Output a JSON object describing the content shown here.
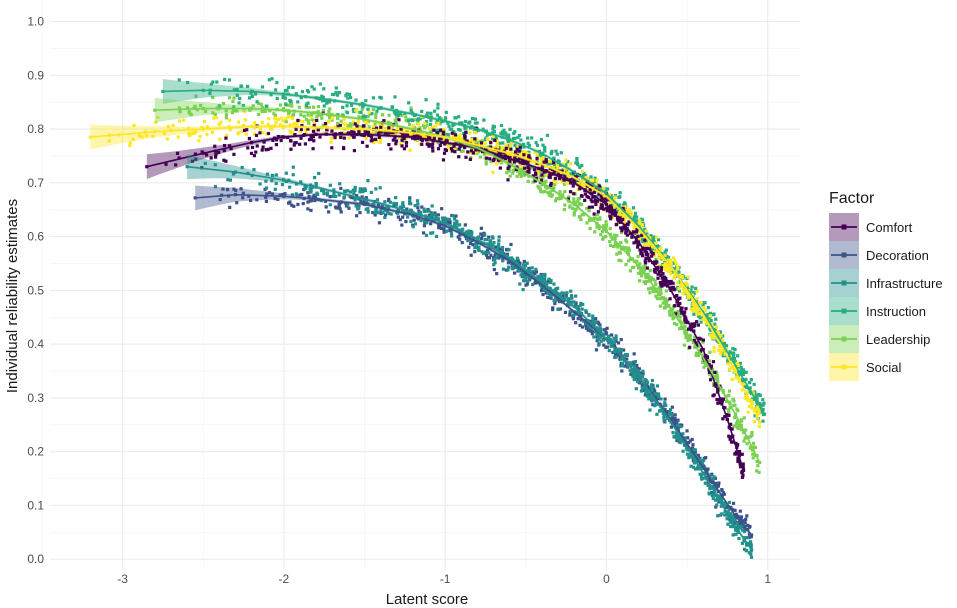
{
  "chart_data": {
    "type": "scatter",
    "xlabel": "Latent score",
    "ylabel": "Individual reliability estimates",
    "xlim": [
      -3.45,
      1.2
    ],
    "ylim": [
      -0.02,
      1.04
    ],
    "x_ticks": [
      -3,
      -2,
      -1,
      0,
      1
    ],
    "x_tick_labels": [
      "-3",
      "-2",
      "-1",
      "0",
      "1"
    ],
    "y_ticks": [
      0.0,
      0.1,
      0.2,
      0.3,
      0.4,
      0.5,
      0.6,
      0.7,
      0.8,
      0.9,
      1.0
    ],
    "y_tick_labels": [
      "0.0",
      "0.1",
      "0.2",
      "0.3",
      "0.4",
      "0.5",
      "0.6",
      "0.7",
      "0.8",
      "0.9",
      "1.0"
    ],
    "grid": true,
    "legend": {
      "title": "Factor",
      "position": "right"
    },
    "series": [
      {
        "name": "Comfort",
        "color": "#440154",
        "points": [
          [
            -2.85,
            0.73
          ],
          [
            -2.5,
            0.755
          ],
          [
            -2.2,
            0.775
          ],
          [
            -2.0,
            0.785
          ],
          [
            -1.8,
            0.79
          ],
          [
            -1.5,
            0.79
          ],
          [
            -1.2,
            0.785
          ],
          [
            -1.0,
            0.775
          ],
          [
            -0.8,
            0.765
          ],
          [
            -0.6,
            0.745
          ],
          [
            -0.4,
            0.725
          ],
          [
            -0.2,
            0.7
          ],
          [
            0.0,
            0.66
          ],
          [
            0.2,
            0.59
          ],
          [
            0.4,
            0.5
          ],
          [
            0.6,
            0.39
          ],
          [
            0.75,
            0.26
          ],
          [
            0.85,
            0.165
          ]
        ]
      },
      {
        "name": "Decoration",
        "color": "#3b528b",
        "points": [
          [
            -2.55,
            0.672
          ],
          [
            -2.3,
            0.678
          ],
          [
            -2.0,
            0.675
          ],
          [
            -1.8,
            0.67
          ],
          [
            -1.5,
            0.66
          ],
          [
            -1.2,
            0.64
          ],
          [
            -1.0,
            0.62
          ],
          [
            -0.8,
            0.59
          ],
          [
            -0.6,
            0.555
          ],
          [
            -0.4,
            0.51
          ],
          [
            -0.2,
            0.46
          ],
          [
            0.0,
            0.41
          ],
          [
            0.2,
            0.34
          ],
          [
            0.4,
            0.26
          ],
          [
            0.6,
            0.17
          ],
          [
            0.8,
            0.08
          ],
          [
            0.9,
            0.045
          ]
        ]
      },
      {
        "name": "Infrastructure",
        "color": "#21918c",
        "points": [
          [
            -2.6,
            0.73
          ],
          [
            -2.3,
            0.72
          ],
          [
            -2.0,
            0.705
          ],
          [
            -1.8,
            0.692
          ],
          [
            -1.5,
            0.67
          ],
          [
            -1.2,
            0.645
          ],
          [
            -1.0,
            0.625
          ],
          [
            -0.8,
            0.595
          ],
          [
            -0.6,
            0.56
          ],
          [
            -0.4,
            0.515
          ],
          [
            -0.2,
            0.47
          ],
          [
            0.0,
            0.41
          ],
          [
            0.2,
            0.34
          ],
          [
            0.4,
            0.255
          ],
          [
            0.6,
            0.16
          ],
          [
            0.8,
            0.06
          ],
          [
            0.9,
            0.018
          ]
        ]
      },
      {
        "name": "Instruction",
        "color": "#27ad81",
        "points": [
          [
            -2.75,
            0.87
          ],
          [
            -2.5,
            0.872
          ],
          [
            -2.2,
            0.87
          ],
          [
            -2.0,
            0.865
          ],
          [
            -1.8,
            0.858
          ],
          [
            -1.5,
            0.845
          ],
          [
            -1.2,
            0.828
          ],
          [
            -1.0,
            0.815
          ],
          [
            -0.8,
            0.8
          ],
          [
            -0.6,
            0.78
          ],
          [
            -0.4,
            0.755
          ],
          [
            -0.2,
            0.72
          ],
          [
            0.0,
            0.68
          ],
          [
            0.2,
            0.62
          ],
          [
            0.4,
            0.545
          ],
          [
            0.6,
            0.46
          ],
          [
            0.8,
            0.36
          ],
          [
            0.98,
            0.27
          ]
        ]
      },
      {
        "name": "Leadership",
        "color": "#7ad151",
        "points": [
          [
            -2.8,
            0.835
          ],
          [
            -2.5,
            0.838
          ],
          [
            -2.2,
            0.838
          ],
          [
            -2.0,
            0.835
          ],
          [
            -1.8,
            0.83
          ],
          [
            -1.5,
            0.818
          ],
          [
            -1.2,
            0.8
          ],
          [
            -1.0,
            0.785
          ],
          [
            -0.8,
            0.765
          ],
          [
            -0.6,
            0.735
          ],
          [
            -0.4,
            0.7
          ],
          [
            -0.2,
            0.66
          ],
          [
            0.0,
            0.61
          ],
          [
            0.2,
            0.545
          ],
          [
            0.4,
            0.465
          ],
          [
            0.6,
            0.375
          ],
          [
            0.8,
            0.27
          ],
          [
            0.95,
            0.18
          ]
        ]
      },
      {
        "name": "Social",
        "color": "#fde725",
        "points": [
          [
            -3.2,
            0.785
          ],
          [
            -2.8,
            0.795
          ],
          [
            -2.5,
            0.8
          ],
          [
            -2.2,
            0.805
          ],
          [
            -2.0,
            0.805
          ],
          [
            -1.8,
            0.803
          ],
          [
            -1.5,
            0.8
          ],
          [
            -1.2,
            0.793
          ],
          [
            -1.0,
            0.785
          ],
          [
            -0.8,
            0.77
          ],
          [
            -0.6,
            0.755
          ],
          [
            -0.4,
            0.735
          ],
          [
            -0.2,
            0.71
          ],
          [
            0.0,
            0.675
          ],
          [
            0.2,
            0.615
          ],
          [
            0.4,
            0.545
          ],
          [
            0.6,
            0.455
          ],
          [
            0.8,
            0.35
          ],
          [
            0.95,
            0.255
          ]
        ]
      }
    ]
  }
}
